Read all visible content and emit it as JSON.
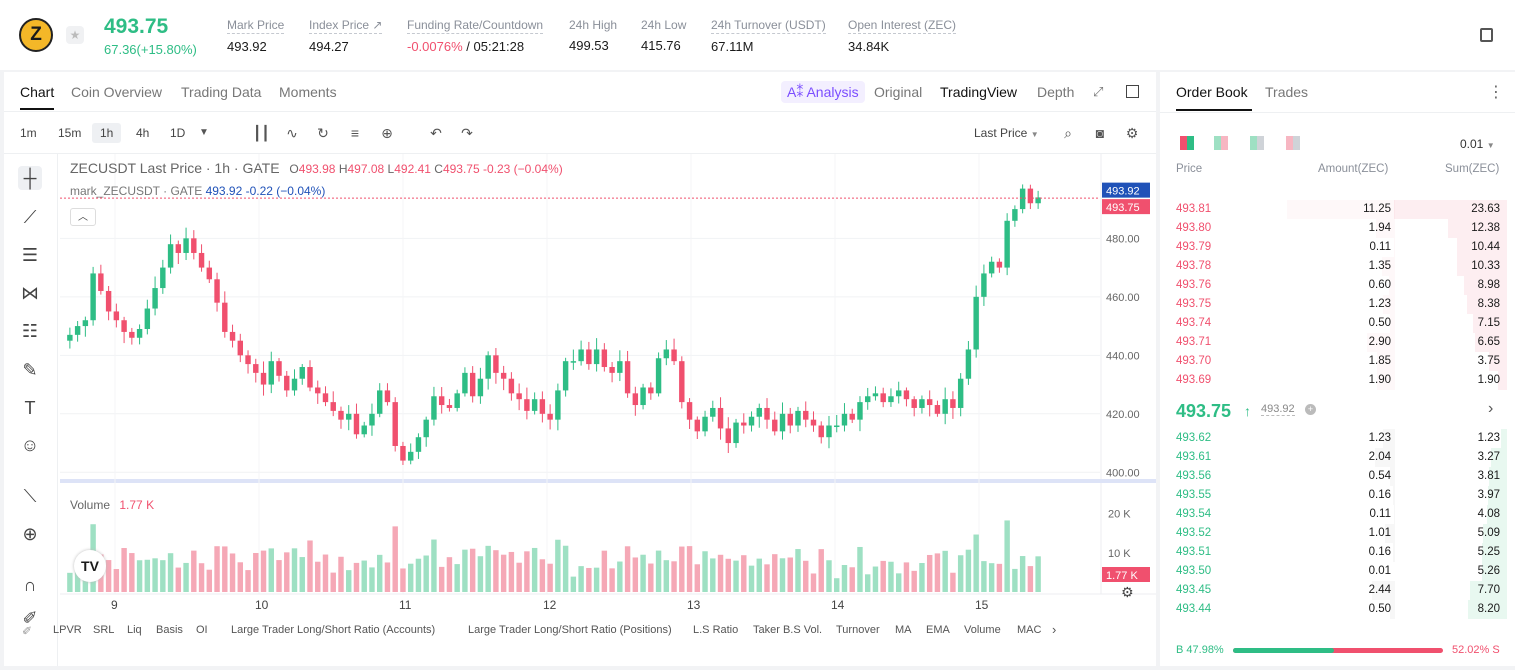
{
  "header": {
    "coin_glyph": "Z",
    "price": "493.75",
    "change": "67.36(+15.80%)",
    "stats": [
      {
        "label": "Mark Price",
        "value": "493.92"
      },
      {
        "label": "Index Price ↗",
        "value": "494.27"
      },
      {
        "label": "Funding Rate/Countdown",
        "value_red": "-0.0076%",
        "value": " / 05:21:28"
      },
      {
        "label": "24h High",
        "value": "499.53"
      },
      {
        "label": "24h Low",
        "value": "415.76"
      },
      {
        "label": "24h Turnover (USDT)",
        "value": "67.11M"
      },
      {
        "label": "Open Interest (ZEC)",
        "value": "34.84K"
      }
    ]
  },
  "chart_tabs": [
    "Chart",
    "Coin Overview",
    "Trading Data",
    "Moments"
  ],
  "view_tabs": {
    "ai": "A⁑ Analysis",
    "original": "Original",
    "tradingview": "TradingView",
    "depth": "Depth"
  },
  "timeframes": [
    "1m",
    "15m",
    "1h",
    "4h",
    "1D"
  ],
  "last_price_select": "Last Price",
  "legend": {
    "symbol": "ZECUSDT Last Price · 1h · GATE",
    "o_label": "O",
    "o": "493.98",
    "h_label": "H",
    "h": "497.08",
    "l_label": "L",
    "l": "492.41",
    "c_label": "C",
    "c": "493.75",
    "chg": "-0.23 (−0.04%)",
    "mark": "mark_ZECUSDT · GATE",
    "mark_val": "493.92 -0.22 (−0.04%)",
    "volume_label": "Volume",
    "volume_val": "1.77 K"
  },
  "price_tags": {
    "mark": "493.92",
    "last": "493.75",
    "volume": "1.77 K"
  },
  "chart_data": {
    "type": "candlestick",
    "y_ticks": [
      "480.00",
      "460.00",
      "440.00",
      "420.00",
      "400.00"
    ],
    "y_tick_values": [
      480,
      460,
      440,
      420,
      400
    ],
    "vol_ticks": [
      "20 K",
      "10 K"
    ],
    "x_ticks": [
      "9",
      "10",
      "11",
      "12",
      "13",
      "14",
      "15"
    ],
    "closes": [
      447,
      450,
      452,
      468,
      462,
      455,
      452,
      448,
      446,
      449,
      456,
      463,
      470,
      478,
      475,
      480,
      475,
      470,
      466,
      458,
      448,
      445,
      440,
      437,
      434,
      430,
      438,
      433,
      428,
      432,
      436,
      429,
      427,
      424,
      421,
      418,
      420,
      413,
      416,
      420,
      428,
      424,
      409,
      404,
      407,
      412,
      418,
      426,
      423,
      422,
      427,
      434,
      426,
      432,
      440,
      434,
      432,
      427,
      425,
      421,
      425,
      420,
      418,
      428,
      438,
      438,
      442,
      437,
      442,
      436,
      434,
      438,
      427,
      423,
      429,
      427,
      439,
      442,
      438,
      424,
      418,
      414,
      419,
      422,
      415,
      410,
      417,
      416,
      419,
      422,
      418,
      414,
      420,
      416,
      421,
      418,
      416,
      412,
      416,
      416,
      420,
      418,
      424,
      426,
      427,
      424,
      426,
      428,
      425,
      422,
      425,
      423,
      420,
      425,
      422,
      432,
      442,
      460,
      468,
      472,
      470,
      486,
      490,
      497,
      492,
      494
    ],
    "volume_ticks": [
      20000,
      10000
    ]
  },
  "orderbook": {
    "tabs": [
      "Order Book",
      "Trades"
    ],
    "precision": "0.01",
    "headers": [
      "Price",
      "Amount(ZEC)",
      "Sum(ZEC)"
    ],
    "asks": [
      [
        "493.81",
        "11.25",
        "23.63"
      ],
      [
        "493.80",
        "1.94",
        "12.38"
      ],
      [
        "493.79",
        "0.11",
        "10.44"
      ],
      [
        "493.78",
        "1.35",
        "10.33"
      ],
      [
        "493.76",
        "0.60",
        "8.98"
      ],
      [
        "493.75",
        "1.23",
        "8.38"
      ],
      [
        "493.74",
        "0.50",
        "7.15"
      ],
      [
        "493.71",
        "2.90",
        "6.65"
      ],
      [
        "493.70",
        "1.85",
        "3.75"
      ],
      [
        "493.69",
        "1.90",
        "1.90"
      ]
    ],
    "mid_price": "493.75",
    "mid_arrow": "↑",
    "mid_mark": "493.92",
    "bids": [
      [
        "493.62",
        "1.23",
        "1.23"
      ],
      [
        "493.61",
        "2.04",
        "3.27"
      ],
      [
        "493.56",
        "0.54",
        "3.81"
      ],
      [
        "493.55",
        "0.16",
        "3.97"
      ],
      [
        "493.54",
        "0.11",
        "4.08"
      ],
      [
        "493.52",
        "1.01",
        "5.09"
      ],
      [
        "493.51",
        "0.16",
        "5.25"
      ],
      [
        "493.50",
        "0.01",
        "5.26"
      ],
      [
        "493.45",
        "2.44",
        "7.70"
      ],
      [
        "493.44",
        "0.50",
        "8.20"
      ]
    ],
    "buy_ratio": "47.98%",
    "sell_ratio": "52.02%",
    "buy_label": "B",
    "sell_label": "S",
    "buy_fraction": 0.4798
  },
  "indicators": [
    "LPVR",
    "SRL",
    "Liq",
    "Basis",
    "OI",
    "Large Trader Long/Short Ratio (Accounts)",
    "Large Trader Long/Short Ratio (Positions)",
    "L.S Ratio",
    "Taker B.S Vol.",
    "Turnover",
    "MA",
    "EMA",
    "Volume",
    "MAC"
  ],
  "colors": {
    "up": "#2ebd85",
    "down": "#f0506e",
    "mark_tag": "#2052b8"
  }
}
